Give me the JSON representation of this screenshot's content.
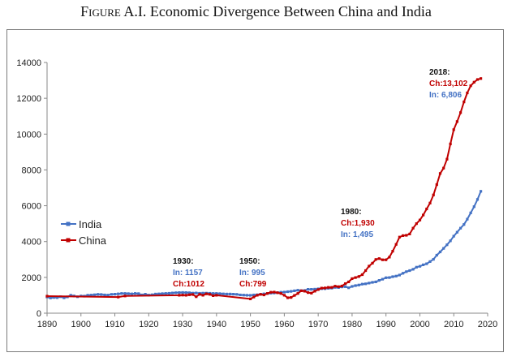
{
  "figure": {
    "caption_prefix": "Figure A.I.",
    "caption_text": "Economic Divergence Between China and India"
  },
  "colors": {
    "india": "#4472C4",
    "china": "#C00000",
    "axis": "#888888",
    "text_black": "#111111"
  },
  "chart_data": {
    "type": "line",
    "title": "Figure A.I. Economic Divergence Between China and India",
    "xlabel": "",
    "ylabel": "",
    "xlim": [
      1890,
      2020
    ],
    "ylim": [
      0,
      14000
    ],
    "xticks": [
      1890,
      1900,
      1910,
      1920,
      1930,
      1940,
      1950,
      1960,
      1970,
      1980,
      1990,
      2000,
      2010,
      2020
    ],
    "yticks": [
      0,
      2000,
      4000,
      6000,
      8000,
      10000,
      12000,
      14000
    ],
    "grid": false,
    "legend_position": "left",
    "legend": [
      "India",
      "China"
    ],
    "series": [
      {
        "name": "India",
        "color": "#4472C4",
        "x": [
          1890,
          1891,
          1892,
          1893,
          1894,
          1895,
          1896,
          1897,
          1898,
          1899,
          1900,
          1901,
          1902,
          1903,
          1904,
          1905,
          1906,
          1907,
          1908,
          1909,
          1910,
          1911,
          1912,
          1913,
          1914,
          1915,
          1916,
          1917,
          1918,
          1919,
          1920,
          1921,
          1922,
          1923,
          1924,
          1925,
          1926,
          1927,
          1928,
          1929,
          1930,
          1931,
          1932,
          1933,
          1934,
          1935,
          1936,
          1937,
          1938,
          1939,
          1940,
          1941,
          1942,
          1943,
          1944,
          1945,
          1946,
          1947,
          1948,
          1949,
          1950,
          1951,
          1952,
          1953,
          1954,
          1955,
          1956,
          1957,
          1958,
          1959,
          1960,
          1961,
          1962,
          1963,
          1964,
          1965,
          1966,
          1967,
          1968,
          1969,
          1970,
          1971,
          1972,
          1973,
          1974,
          1975,
          1976,
          1977,
          1978,
          1979,
          1980,
          1981,
          1982,
          1983,
          1984,
          1985,
          1986,
          1987,
          1988,
          1989,
          1990,
          1991,
          1992,
          1993,
          1994,
          1995,
          1996,
          1997,
          1998,
          1999,
          2000,
          2001,
          2002,
          2003,
          2004,
          2005,
          2006,
          2007,
          2008,
          2009,
          2010,
          2011,
          2012,
          2013,
          2014,
          2015,
          2016,
          2017,
          2018
        ],
        "values": [
          900,
          850,
          880,
          870,
          920,
          860,
          910,
          1000,
          960,
          920,
          960,
          950,
          1000,
          1010,
          1030,
          1050,
          1040,
          1020,
          1010,
          1050,
          1060,
          1080,
          1100,
          1100,
          1090,
          1080,
          1100,
          1090,
          1020,
          1060,
          1010,
          1030,
          1070,
          1080,
          1090,
          1100,
          1110,
          1130,
          1140,
          1150,
          1157,
          1150,
          1140,
          1120,
          1130,
          1110,
          1120,
          1120,
          1110,
          1100,
          1100,
          1090,
          1080,
          1070,
          1070,
          1060,
          1050,
          1020,
          1010,
          1000,
          995,
          1020,
          1030,
          1060,
          1080,
          1100,
          1120,
          1130,
          1150,
          1170,
          1180,
          1200,
          1220,
          1250,
          1280,
          1260,
          1270,
          1330,
          1330,
          1340,
          1360,
          1370,
          1370,
          1390,
          1400,
          1440,
          1430,
          1470,
          1480,
          1420,
          1495,
          1540,
          1570,
          1620,
          1640,
          1680,
          1720,
          1750,
          1830,
          1900,
          1980,
          1990,
          2040,
          2070,
          2130,
          2230,
          2320,
          2380,
          2450,
          2570,
          2620,
          2700,
          2760,
          2880,
          3010,
          3240,
          3420,
          3620,
          3820,
          4040,
          4300,
          4520,
          4750,
          4950,
          5250,
          5600,
          5950,
          6350,
          6806
        ]
      },
      {
        "name": "China",
        "color": "#C00000",
        "x": [
          1890,
          1911,
          1913,
          1929,
          1930,
          1931,
          1932,
          1933,
          1934,
          1935,
          1936,
          1937,
          1938,
          1939,
          1940,
          1950,
          1951,
          1952,
          1953,
          1954,
          1955,
          1956,
          1957,
          1958,
          1959,
          1960,
          1961,
          1962,
          1963,
          1964,
          1965,
          1966,
          1967,
          1968,
          1969,
          1970,
          1971,
          1972,
          1973,
          1974,
          1975,
          1976,
          1977,
          1978,
          1979,
          1980,
          1981,
          1982,
          1983,
          1984,
          1985,
          1986,
          1987,
          1988,
          1989,
          1990,
          1991,
          1992,
          1993,
          1994,
          1995,
          1996,
          1997,
          1998,
          1999,
          2000,
          2001,
          2002,
          2003,
          2004,
          2005,
          2006,
          2007,
          2008,
          2009,
          2010,
          2011,
          2012,
          2013,
          2014,
          2015,
          2016,
          2017,
          2018
        ],
        "values": [
          950,
          900,
          960,
          1000,
          1012,
          1000,
          1030,
          1040,
          920,
          1050,
          1000,
          1080,
          1050,
          980,
          1000,
          799,
          900,
          1000,
          1050,
          1020,
          1100,
          1170,
          1180,
          1140,
          1100,
          1000,
          860,
          880,
          990,
          1100,
          1250,
          1230,
          1150,
          1120,
          1230,
          1320,
          1400,
          1410,
          1440,
          1440,
          1510,
          1480,
          1520,
          1650,
          1750,
          1930,
          1990,
          2050,
          2150,
          2380,
          2630,
          2790,
          3000,
          3050,
          2980,
          2980,
          3130,
          3460,
          3840,
          4250,
          4330,
          4350,
          4420,
          4750,
          5000,
          5200,
          5480,
          5820,
          6150,
          6600,
          7180,
          7800,
          8100,
          8600,
          9450,
          10250,
          10700,
          11200,
          11800,
          12300,
          12700,
          12900,
          13050,
          13102
        ]
      }
    ],
    "annotations": [
      {
        "year_label": "1930:",
        "india_label": "In: 1157",
        "china_label": "Ch:1012",
        "order": "india-first"
      },
      {
        "year_label": "1950:",
        "india_label": "In: 995",
        "china_label": "Ch:799",
        "order": "india-first"
      },
      {
        "year_label": "1980:",
        "india_label": "In: 1,495",
        "china_label": "Ch:1,930",
        "order": "china-first"
      },
      {
        "year_label": "2018:",
        "india_label": "In: 6,806",
        "china_label": "Ch:13,102",
        "order": "china-first"
      }
    ]
  }
}
